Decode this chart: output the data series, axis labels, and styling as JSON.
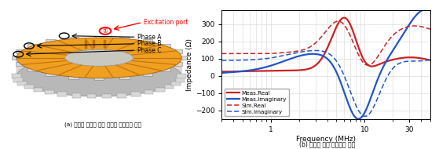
{
  "fig_width": 5.59,
  "fig_height": 1.9,
  "dpi": 100,
  "caption_a": "(a) 설계된 고정자 권선 고주파 임피던스 모델",
  "caption_b": "(b) 고정자 권선 임피던스 비교",
  "plot_ylabel": "Impedance (Ω)",
  "plot_xlabel": "Frequency (MHz)",
  "ylim": [
    -250,
    380
  ],
  "yticks": [
    -200,
    -100,
    0,
    100,
    200,
    300
  ],
  "xticks": [
    1,
    10,
    30
  ],
  "xticklabels": [
    "1",
    "10",
    "30"
  ],
  "xlim_log": [
    0.3,
    50
  ],
  "legend_labels": [
    "Meas.Real",
    "Meas.Imaginary",
    "Sim.Real",
    "Sim.Imaginary"
  ],
  "legend_colors": [
    "#cc2222",
    "#2255cc",
    "#cc2222",
    "#2255cc"
  ],
  "legend_styles": [
    "solid",
    "solid",
    "dashed",
    "dashed"
  ],
  "grid_color": "#dddddd",
  "excitation_label": "Excitation port",
  "phase_labels": [
    "Phase A",
    "Phase B",
    "Phase C"
  ],
  "orange_color": "#f0a020",
  "orange_dark": "#c07010",
  "gray_light": "#d8d8d8",
  "gray_mid": "#b8b8b8",
  "gray_dark": "#909090",
  "inner_color": "#c8c8c0"
}
